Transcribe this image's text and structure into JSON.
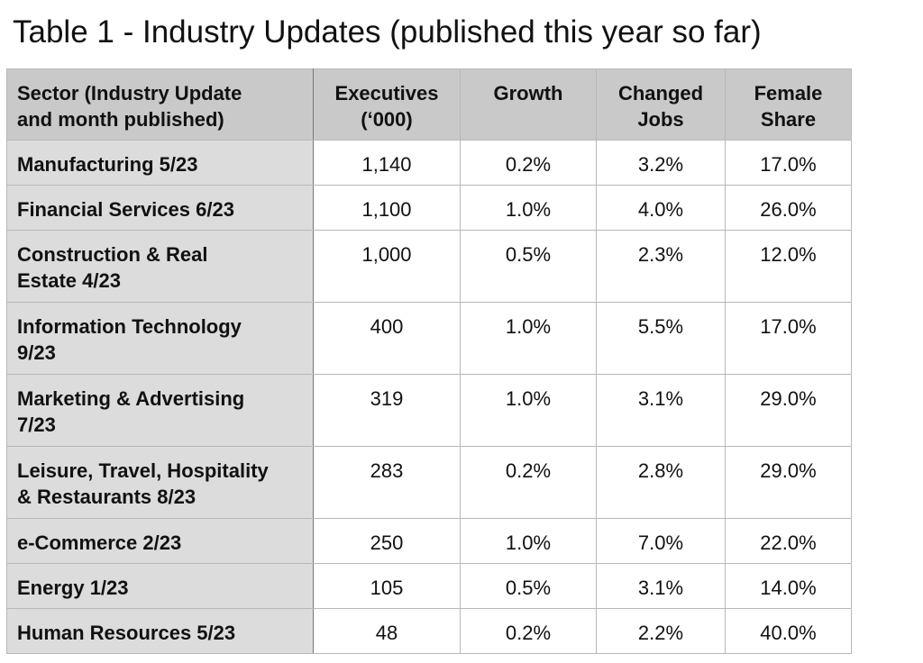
{
  "title": "Table 1 - Industry Updates (published this year so far)",
  "table": {
    "headers": {
      "sector": "Sector (Industry Update\nand month published)",
      "executives": "Executives\n(‘000)",
      "growth": "Growth",
      "changed_jobs": "Changed\nJobs",
      "female_share": "Female\nShare"
    },
    "rows": [
      {
        "sector": "Manufacturing 5/23",
        "executives": "1,140",
        "growth": "0.2%",
        "changed_jobs": "3.2%",
        "female_share": "17.0%"
      },
      {
        "sector": "Financial Services 6/23",
        "executives": "1,100",
        "growth": "1.0%",
        "changed_jobs": "4.0%",
        "female_share": "26.0%"
      },
      {
        "sector": "Construction & Real\nEstate 4/23",
        "executives": "1,000",
        "growth": "0.5%",
        "changed_jobs": "2.3%",
        "female_share": "12.0%"
      },
      {
        "sector": "Information Technology\n9/23",
        "executives": "400",
        "growth": "1.0%",
        "changed_jobs": "5.5%",
        "female_share": "17.0%"
      },
      {
        "sector": "Marketing & Advertising\n7/23",
        "executives": "319",
        "growth": "1.0%",
        "changed_jobs": "3.1%",
        "female_share": "29.0%"
      },
      {
        "sector": "Leisure, Travel, Hospitality\n& Restaurants 8/23",
        "executives": "283",
        "growth": "0.2%",
        "changed_jobs": "2.8%",
        "female_share": "29.0%"
      },
      {
        "sector": "e-Commerce 2/23",
        "executives": "250",
        "growth": "1.0%",
        "changed_jobs": "7.0%",
        "female_share": "22.0%"
      },
      {
        "sector": "Energy 1/23",
        "executives": "105",
        "growth": "0.5%",
        "changed_jobs": "3.1%",
        "female_share": "14.0%"
      },
      {
        "sector": "Human Resources 5/23",
        "executives": "48",
        "growth": "0.2%",
        "changed_jobs": "2.2%",
        "female_share": "40.0%"
      }
    ]
  }
}
